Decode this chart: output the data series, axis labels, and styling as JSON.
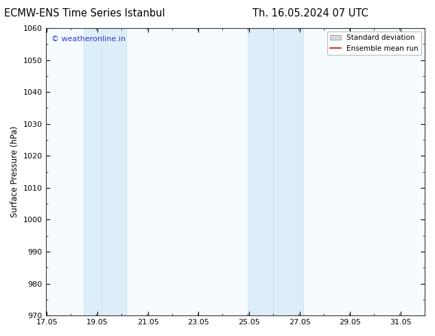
{
  "title_left": "ECMW-ENS Time Series Istanbul",
  "title_right": "Th. 16.05.2024 07 UTC",
  "ylabel": "Surface Pressure (hPa)",
  "ylim": [
    970,
    1060
  ],
  "yticks": [
    970,
    980,
    990,
    1000,
    1010,
    1020,
    1030,
    1040,
    1050,
    1060
  ],
  "xlim_start": 17.0,
  "xlim_end": 32.0,
  "xticks": [
    17.05,
    19.05,
    21.05,
    23.05,
    25.05,
    27.05,
    29.05,
    31.05
  ],
  "xtick_labels": [
    "17.05",
    "19.05",
    "21.05",
    "23.05",
    "25.05",
    "27.05",
    "29.05",
    "31.05"
  ],
  "shaded_regions": [
    {
      "xmin": 18.5,
      "xmax": 19.2
    },
    {
      "xmin": 19.2,
      "xmax": 20.2
    },
    {
      "xmin": 25.0,
      "xmax": 26.0
    },
    {
      "xmin": 26.0,
      "xmax": 27.2
    }
  ],
  "shade_color": "#ddeef8",
  "plot_bg_color": "#f5fbff",
  "background_color": "#ffffff",
  "watermark_text": "© weatheronline.in",
  "watermark_color": "#3333cc",
  "legend_sd_label": "Standard deviation",
  "legend_em_label": "Ensemble mean run",
  "legend_sd_facecolor": "#d8d8d8",
  "legend_sd_edgecolor": "#aaaaaa",
  "legend_em_color": "#dd0000",
  "title_fontsize": 10.5,
  "axis_label_fontsize": 8.5,
  "tick_fontsize": 8,
  "watermark_fontsize": 8,
  "legend_fontsize": 7.5
}
